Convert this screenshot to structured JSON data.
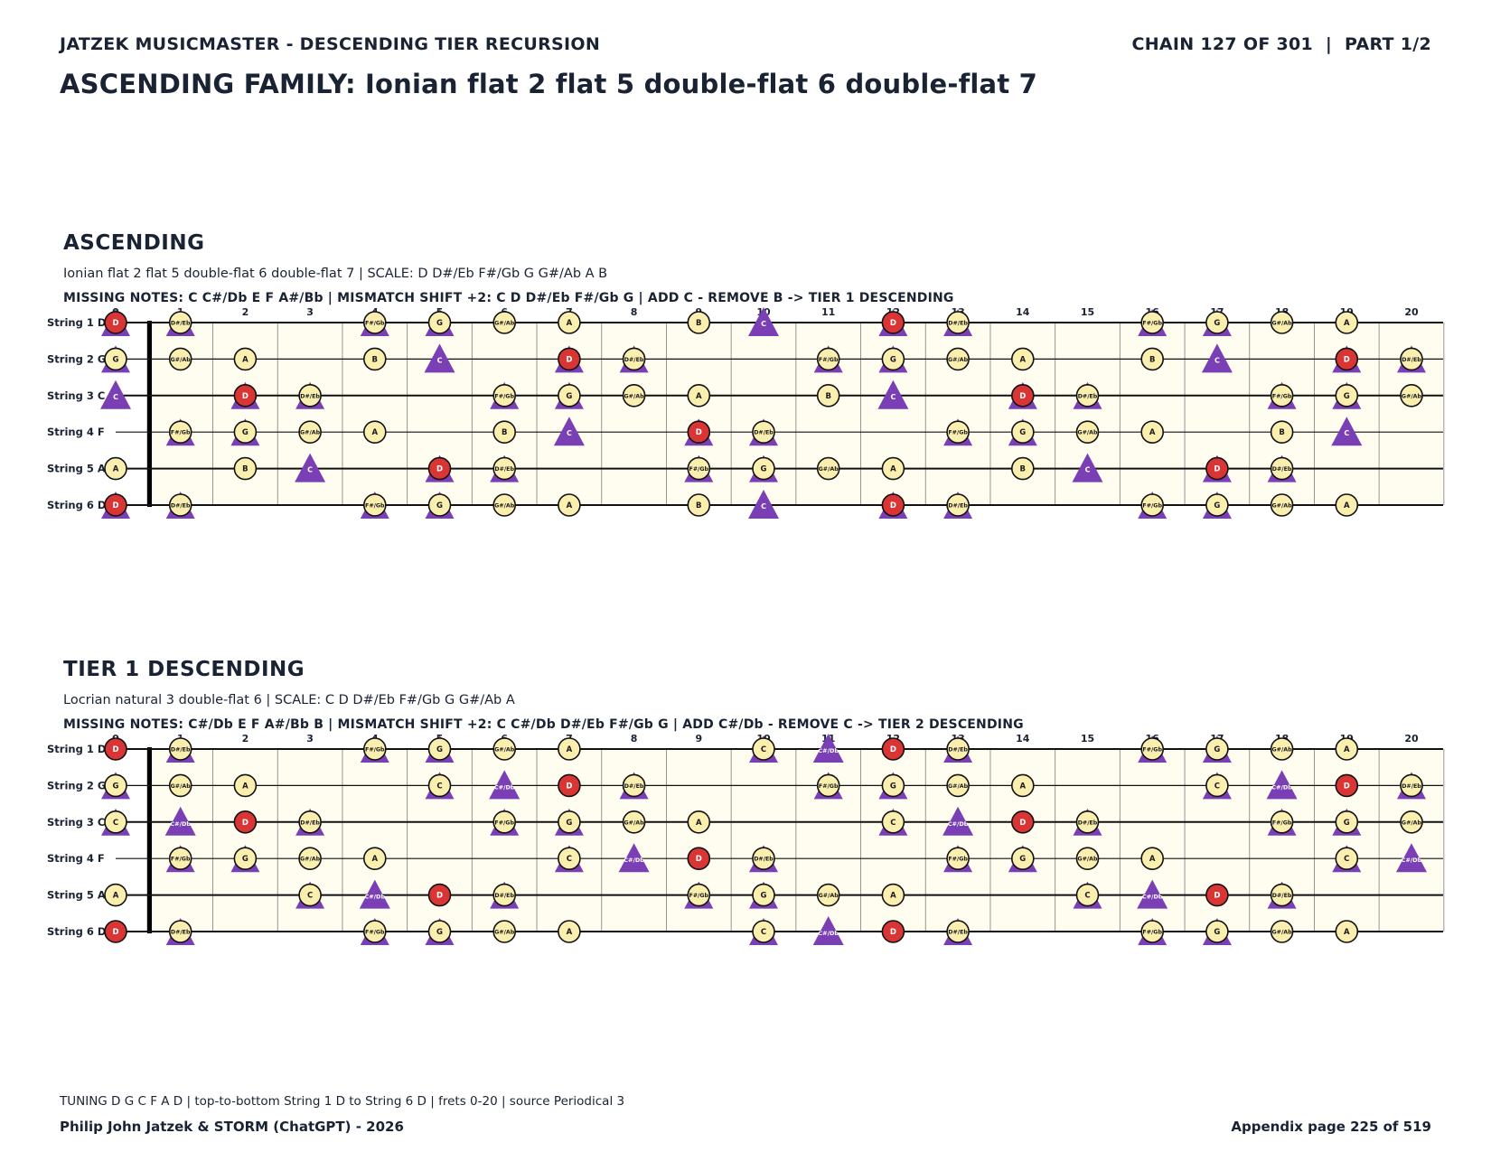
{
  "header": {
    "left": "JATZEK MUSICMASTER - DESCENDING TIER RECURSION",
    "right": "CHAIN 127 OF 301  |  PART 1/2"
  },
  "title": "ASCENDING FAMILY: Ionian flat 2 flat 5 double-flat 6 double-flat 7",
  "fret_numbers": [
    "0",
    "1",
    "2",
    "3",
    "4",
    "5",
    "6",
    "7",
    "8",
    "9",
    "10",
    "11",
    "12",
    "13",
    "14",
    "15",
    "16",
    "17",
    "18",
    "19",
    "20"
  ],
  "strings": [
    {
      "label": "String 1 D",
      "open": "D"
    },
    {
      "label": "String 2 G",
      "open": "G"
    },
    {
      "label": "String 3 C",
      "open": "C"
    },
    {
      "label": "String 4 F",
      "open": "F"
    },
    {
      "label": "String 5 A",
      "open": "A"
    },
    {
      "label": "String 6 D",
      "open": "D"
    }
  ],
  "colors": {
    "board_bg": "#fffcf0",
    "note_fill": "#fbefb0",
    "root_fill": "#d93535",
    "triangle": "#7b3fb5",
    "text_dark": "#1a2333"
  },
  "sections": [
    {
      "title": "ASCENDING",
      "description": "Ionian flat 2 flat 5 double-flat 6 double-flat 7  |  SCALE: D D#/Eb F#/Gb G G#/Ab A B",
      "missing": "MISSING NOTES: C C#/Db E F A#/Bb  |  MISMATCH SHIFT +2: C D D#/Eb F#/Gb G  |  ADD C - REMOVE B -> TIER 1 DESCENDING",
      "root": "D",
      "scale": [
        "D",
        "D#/Eb",
        "F#/Gb",
        "G",
        "G#/Ab",
        "A",
        "B"
      ],
      "marked": [
        "C",
        "D",
        "D#/Eb",
        "F#/Gb",
        "G"
      ],
      "added": "C"
    },
    {
      "title": "TIER 1 DESCENDING",
      "description": "Locrian natural 3 double-flat 6  |  SCALE: C D D#/Eb F#/Gb G G#/Ab A",
      "missing": "MISSING NOTES: C#/Db E F A#/Bb B  |  MISMATCH SHIFT +2: C C#/Db D#/Eb F#/Gb G  |  ADD C#/Db - REMOVE C -> TIER 2 DESCENDING",
      "root": "D",
      "scale": [
        "C",
        "D",
        "D#/Eb",
        "F#/Gb",
        "G",
        "G#/Ab",
        "A"
      ],
      "marked": [
        "C",
        "C#/Db",
        "D#/Eb",
        "F#/Gb",
        "G"
      ],
      "added": "C#/Db"
    }
  ],
  "footer": {
    "tuning": "TUNING D G C F A D | top-to-bottom String 1 D to String 6 D | frets 0-20 | source Periodical 3",
    "authors": "Philip John Jatzek & STORM (ChatGPT) - 2026",
    "page": "Appendix page 225 of 519"
  }
}
